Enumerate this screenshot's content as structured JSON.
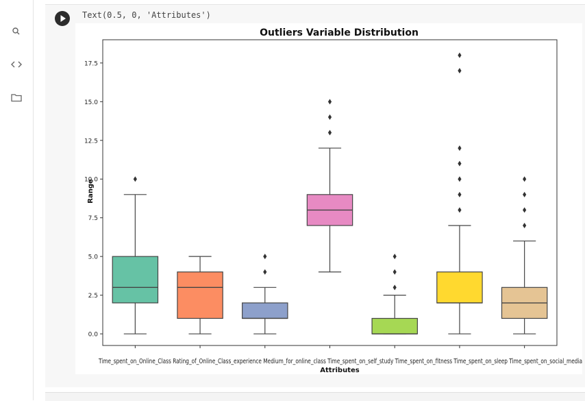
{
  "sidebar": {
    "icons": [
      "search-icon",
      "code-icon",
      "folder-icon"
    ]
  },
  "cell": {
    "output_text": "Text(0.5, 0, 'Attributes')"
  },
  "chart_data": {
    "type": "box",
    "title": "Outliers Variable Distribution",
    "xlabel": "Attributes",
    "ylabel": "Range",
    "ylim": [
      -0.75,
      19.0
    ],
    "yticks": [
      "0.0",
      "2.5",
      "5.0",
      "7.5",
      "10.0",
      "12.5",
      "15.0",
      "17.5"
    ],
    "categories": [
      "Time_spent_on_Online_Class",
      "Rating_of_Online_Class_experience",
      "Medium_for_online_class",
      "Time_spent_on_self_study",
      "Time_spent_on_fitness",
      "Time_spent_on_sleep",
      "Time_spent_on_social_media"
    ],
    "xtick_labels_overlapping": "Time_spent_on_Online_Class  Rating_of_Online_Class_experience  Medium_for_online_class  Time_spent_on_self_study  Time_spent_on_fitness  Time_spent_on_sleep  Time_spent_on_social_media",
    "boxes": [
      {
        "name": "Time_spent_on_Online_Class",
        "whislo": 0,
        "q1": 2,
        "med": 3,
        "q3": 5,
        "whishi": 9,
        "fliers": [
          10
        ],
        "color": "#66c2a5"
      },
      {
        "name": "Rating_of_Online_Class_experience",
        "whislo": 0,
        "q1": 1,
        "med": 3,
        "q3": 4,
        "whishi": 5,
        "fliers": [],
        "color": "#fc8d62"
      },
      {
        "name": "Medium_for_online_class",
        "whislo": 0,
        "q1": 1,
        "med": 1,
        "q3": 2,
        "whishi": 3,
        "fliers": [
          4,
          5
        ],
        "color": "#8da0cb"
      },
      {
        "name": "Time_spent_on_self_study",
        "whislo": 4,
        "q1": 7,
        "med": 8,
        "q3": 9,
        "whishi": 12,
        "fliers": [
          13,
          14,
          15
        ],
        "color": "#e78ac3"
      },
      {
        "name": "Time_spent_on_fitness",
        "whislo": 0,
        "q1": 0,
        "med": 0,
        "q3": 1,
        "whishi": 2.5,
        "fliers": [
          3,
          4,
          5
        ],
        "color": "#a6d854"
      },
      {
        "name": "Time_spent_on_sleep",
        "whislo": 0,
        "q1": 2,
        "med": 2,
        "q3": 4,
        "whishi": 7,
        "fliers": [
          8,
          9,
          10,
          11,
          12,
          17,
          18
        ],
        "color": "#ffd92f"
      },
      {
        "name": "Time_spent_on_social_media",
        "whislo": 0,
        "q1": 1,
        "med": 2,
        "q3": 3,
        "whishi": 6,
        "fliers": [
          7,
          8,
          9,
          10
        ],
        "color": "#e5c494"
      }
    ],
    "grid": false
  }
}
